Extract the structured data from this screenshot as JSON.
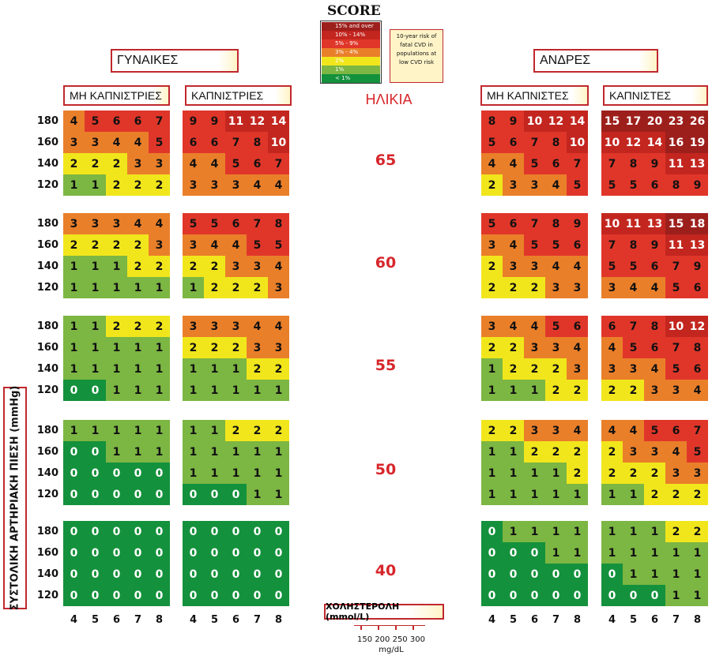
{
  "score": {
    "title": "SCORE",
    "legend": [
      {
        "label": "15% and over",
        "color": "#9d1f1c"
      },
      {
        "label": "10% - 14%",
        "color": "#c3261f"
      },
      {
        "label": "5% - 9%",
        "color": "#e0362a"
      },
      {
        "label": "3% - 4%",
        "color": "#ea7f2a"
      },
      {
        "label": "2%",
        "color": "#f1e61c"
      },
      {
        "label": "1%",
        "color": "#7cb643"
      },
      {
        "label": "< 1%",
        "color": "#14913c"
      }
    ],
    "note": "10-year risk of fatal CVD in populations at low CVD risk"
  },
  "labels": {
    "women": "ΓΥΝΑΙΚΕΣ",
    "men": "ΑΝΔΡΕΣ",
    "women_non_smokers": "ΜΗ ΚΑΠΝΙΣΤΡΙΕΣ",
    "women_smokers": "ΚΑΠΝΙΣΤΡΙΕΣ",
    "men_non_smokers": "ΜΗ ΚΑΠΝΙΣΤΕΣ",
    "men_smokers": "ΚΑΠΝΙΣΤΕΣ",
    "age": "ΗΛΙΚΙΑ",
    "y_axis": "ΣΥΣΤΟΛΙΚΗ ΑΡΤΗΡΙΑΚΗ ΠΙΕΣΗ (mmHg)",
    "cholesterol": "ΧΟΛΗΣΤΕΡΟΛΗ (mmol/L)",
    "mgdl_ticks": "150 200 250 300",
    "mgdl_unit": "mg/dL"
  },
  "chart_data": {
    "type": "heatmap",
    "title": "SCORE",
    "ylabel": "ΣΥΣΤΟΛΙΚΗ ΑΡΤΗΡΙΑΚΗ ΠΙΕΣΗ (mmHg)",
    "xlabel": "ΧΟΛΗΣΤΕΡΟΛΗ (mmol/L)",
    "cholesterol": [
      4,
      5,
      6,
      7,
      8
    ],
    "systolic": [
      180,
      160,
      140,
      120
    ],
    "ages": [
      65,
      60,
      55,
      50,
      40
    ],
    "groups": [
      "women_non_smokers",
      "women_smokers",
      "men_non_smokers",
      "men_smokers"
    ],
    "values": {
      "65": {
        "women_non_smokers": [
          [
            4,
            5,
            6,
            6,
            7
          ],
          [
            3,
            3,
            4,
            4,
            5
          ],
          [
            2,
            2,
            2,
            3,
            3
          ],
          [
            1,
            1,
            2,
            2,
            2
          ]
        ],
        "women_smokers": [
          [
            9,
            9,
            11,
            12,
            14
          ],
          [
            6,
            6,
            7,
            8,
            10
          ],
          [
            4,
            4,
            5,
            6,
            7
          ],
          [
            3,
            3,
            3,
            4,
            4
          ]
        ],
        "men_non_smokers": [
          [
            8,
            9,
            10,
            12,
            14
          ],
          [
            5,
            6,
            7,
            8,
            10
          ],
          [
            4,
            4,
            5,
            6,
            7
          ],
          [
            2,
            3,
            3,
            4,
            5
          ]
        ],
        "men_smokers": [
          [
            15,
            17,
            20,
            23,
            26
          ],
          [
            10,
            12,
            14,
            16,
            19
          ],
          [
            7,
            8,
            9,
            11,
            13
          ],
          [
            5,
            5,
            6,
            8,
            9
          ]
        ]
      },
      "60": {
        "women_non_smokers": [
          [
            3,
            3,
            3,
            4,
            4
          ],
          [
            2,
            2,
            2,
            2,
            3
          ],
          [
            1,
            1,
            1,
            2,
            2
          ],
          [
            1,
            1,
            1,
            1,
            1
          ]
        ],
        "women_smokers": [
          [
            5,
            5,
            6,
            7,
            8
          ],
          [
            3,
            4,
            4,
            5,
            5
          ],
          [
            2,
            2,
            3,
            3,
            4
          ],
          [
            1,
            2,
            2,
            2,
            3
          ]
        ],
        "men_non_smokers": [
          [
            5,
            6,
            7,
            8,
            9
          ],
          [
            3,
            4,
            5,
            5,
            6
          ],
          [
            2,
            3,
            3,
            4,
            4
          ],
          [
            2,
            2,
            2,
            3,
            3
          ]
        ],
        "men_smokers": [
          [
            10,
            11,
            13,
            15,
            18
          ],
          [
            7,
            8,
            9,
            11,
            13
          ],
          [
            5,
            5,
            6,
            7,
            9
          ],
          [
            3,
            4,
            4,
            5,
            6
          ]
        ]
      },
      "55": {
        "women_non_smokers": [
          [
            1,
            1,
            2,
            2,
            2
          ],
          [
            1,
            1,
            1,
            1,
            1
          ],
          [
            1,
            1,
            1,
            1,
            1
          ],
          [
            0,
            0,
            1,
            1,
            1
          ]
        ],
        "women_smokers": [
          [
            3,
            3,
            3,
            4,
            4
          ],
          [
            2,
            2,
            2,
            3,
            3
          ],
          [
            1,
            1,
            1,
            2,
            2
          ],
          [
            1,
            1,
            1,
            1,
            1
          ]
        ],
        "men_non_smokers": [
          [
            3,
            4,
            4,
            5,
            6
          ],
          [
            2,
            2,
            3,
            3,
            4
          ],
          [
            1,
            2,
            2,
            2,
            3
          ],
          [
            1,
            1,
            1,
            2,
            2
          ]
        ],
        "men_smokers": [
          [
            6,
            7,
            8,
            10,
            12
          ],
          [
            4,
            5,
            6,
            7,
            8
          ],
          [
            3,
            3,
            4,
            5,
            6
          ],
          [
            2,
            2,
            3,
            3,
            4
          ]
        ]
      },
      "50": {
        "women_non_smokers": [
          [
            1,
            1,
            1,
            1,
            1
          ],
          [
            0,
            0,
            1,
            1,
            1
          ],
          [
            0,
            0,
            0,
            0,
            0
          ],
          [
            0,
            0,
            0,
            0,
            0
          ]
        ],
        "women_smokers": [
          [
            1,
            1,
            2,
            2,
            2
          ],
          [
            1,
            1,
            1,
            1,
            1
          ],
          [
            1,
            1,
            1,
            1,
            1
          ],
          [
            0,
            0,
            0,
            1,
            1
          ]
        ],
        "men_non_smokers": [
          [
            2,
            2,
            3,
            3,
            4
          ],
          [
            1,
            1,
            2,
            2,
            2
          ],
          [
            1,
            1,
            1,
            1,
            2
          ],
          [
            1,
            1,
            1,
            1,
            1
          ]
        ],
        "men_smokers": [
          [
            4,
            4,
            5,
            6,
            7
          ],
          [
            2,
            3,
            3,
            4,
            5
          ],
          [
            2,
            2,
            2,
            3,
            3
          ],
          [
            1,
            1,
            2,
            2,
            2
          ]
        ]
      },
      "40": {
        "women_non_smokers": [
          [
            0,
            0,
            0,
            0,
            0
          ],
          [
            0,
            0,
            0,
            0,
            0
          ],
          [
            0,
            0,
            0,
            0,
            0
          ],
          [
            0,
            0,
            0,
            0,
            0
          ]
        ],
        "women_smokers": [
          [
            0,
            0,
            0,
            0,
            0
          ],
          [
            0,
            0,
            0,
            0,
            0
          ],
          [
            0,
            0,
            0,
            0,
            0
          ],
          [
            0,
            0,
            0,
            0,
            0
          ]
        ],
        "men_non_smokers": [
          [
            0,
            1,
            1,
            1,
            1
          ],
          [
            0,
            0,
            0,
            1,
            1
          ],
          [
            0,
            0,
            0,
            0,
            0
          ],
          [
            0,
            0,
            0,
            0,
            0
          ]
        ],
        "men_smokers": [
          [
            1,
            1,
            1,
            2,
            2
          ],
          [
            1,
            1,
            1,
            1,
            1
          ],
          [
            0,
            1,
            1,
            1,
            1
          ],
          [
            0,
            0,
            0,
            1,
            1
          ]
        ]
      }
    }
  }
}
